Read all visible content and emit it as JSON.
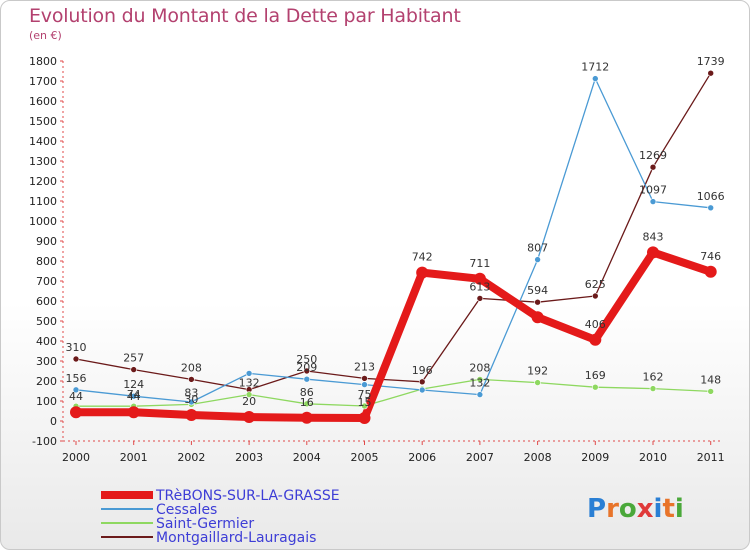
{
  "header": {
    "title": "Evolution du Montant de la Dette par Habitant",
    "subtitle": "(en €)"
  },
  "logo": {
    "text": "Proxiti",
    "letter_colors": [
      "#2a7fd4",
      "#e8742a",
      "#4aa83a",
      "#e03a3a",
      "#2a7fd4",
      "#e8742a",
      "#4aa83a"
    ]
  },
  "chart_data": {
    "type": "line",
    "title": "Evolution du Montant de la Dette par Habitant",
    "ylabel": "(en €)",
    "xlabel": "",
    "ylim": [
      -100,
      1800
    ],
    "y_ticks": [
      -100,
      0,
      100,
      200,
      300,
      400,
      500,
      600,
      700,
      800,
      900,
      1000,
      1100,
      1200,
      1300,
      1400,
      1500,
      1600,
      1700,
      1800
    ],
    "categories": [
      "2000",
      "2001",
      "2002",
      "2003",
      "2004",
      "2005",
      "2006",
      "2007",
      "2008",
      "2009",
      "2010",
      "2011"
    ],
    "grid": false,
    "legend_position": "bottom-left",
    "series": [
      {
        "name": "TRèBONS-SUR-LA-GRASSE",
        "color": "#e41a1a",
        "values": [
          44,
          44,
          30,
          20,
          16,
          15,
          742,
          711,
          519,
          406,
          843,
          746
        ],
        "labels": [
          "44",
          "44",
          "30",
          "20",
          "16",
          "15",
          "742",
          "711",
          "",
          "406",
          "843",
          "746"
        ]
      },
      {
        "name": "Cessales",
        "color": "#4a9ad4",
        "values": [
          156,
          124,
          95,
          238,
          209,
          182,
          155,
          132,
          807,
          1712,
          1097,
          1066
        ],
        "labels": [
          "156",
          "124",
          "",
          "",
          "209",
          "",
          "",
          "132",
          "807",
          "1712",
          "1097",
          "1066"
        ]
      },
      {
        "name": "Saint-Germier",
        "color": "#8ed860",
        "values": [
          74,
          74,
          83,
          132,
          86,
          75,
          160,
          208,
          192,
          169,
          162,
          148
        ],
        "labels": [
          "",
          "74",
          "83",
          "132",
          "86",
          "75",
          "",
          "208",
          "192",
          "169",
          "162",
          "148"
        ]
      },
      {
        "name": "Montgaillard-Lauragais",
        "color": "#6b1a1a",
        "values": [
          310,
          257,
          208,
          157,
          250,
          213,
          196,
          613,
          594,
          625,
          1269,
          1739
        ],
        "labels": [
          "310",
          "257",
          "208",
          "",
          "250",
          "213",
          "196",
          "613",
          "594",
          "625",
          "1269",
          "1739"
        ]
      }
    ]
  }
}
